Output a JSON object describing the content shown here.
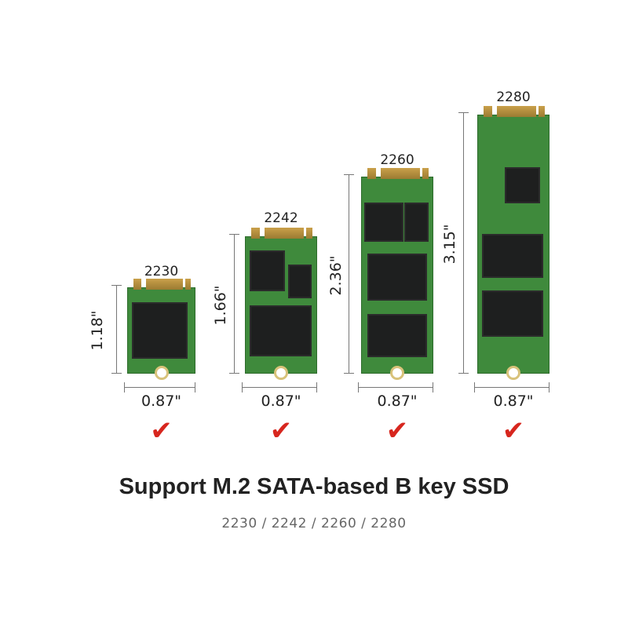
{
  "cards": [
    {
      "name": "2230",
      "height_label": "1.18\"",
      "width_label": "0.87\"",
      "supported": true
    },
    {
      "name": "2242",
      "height_label": "1.66\"",
      "width_label": "0.87\"",
      "supported": true
    },
    {
      "name": "2260",
      "height_label": "2.36\"",
      "width_label": "0.87\"",
      "supported": true
    },
    {
      "name": "2280",
      "height_label": "3.15\"",
      "width_label": "0.87\"",
      "supported": true
    }
  ],
  "check_icon": "check-mark-icon",
  "check_glyph": "✔",
  "colors": {
    "check": "#d7261e",
    "board": "#3f8a3c",
    "text": "#222222",
    "subtitle": "#666666"
  },
  "title": "Support M.2 SATA-based B key SSD",
  "subtitle": "2230  /  2242  /  2260  /  2280"
}
